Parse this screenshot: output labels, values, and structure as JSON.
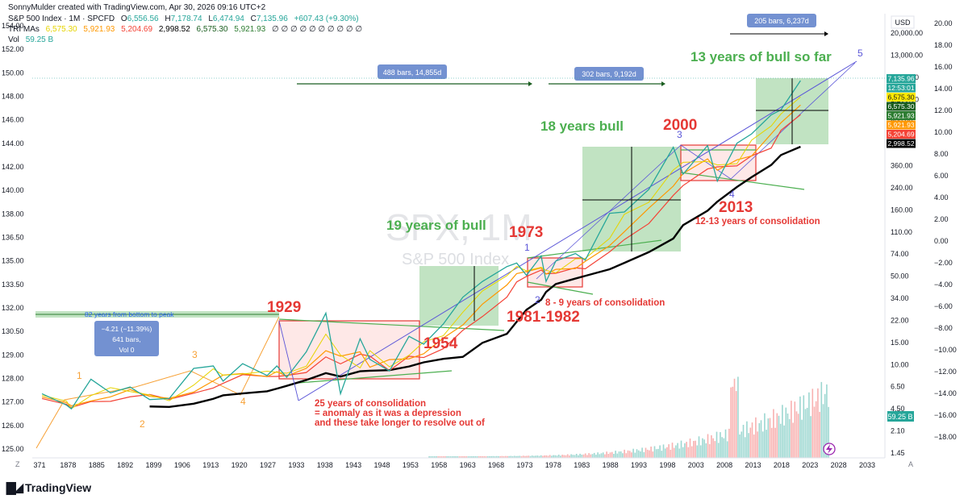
{
  "header": {
    "created_by": "SonnyMulder created with TradingView.com, Apr 30, 2026 09:16 UTC+2",
    "symbol": "S&P 500 Index · 1M · SPCFD",
    "ohlc": {
      "o_label": "O",
      "o": "6,556.56",
      "h_label": "H",
      "h": "7,178.74",
      "l_label": "L",
      "l": "6,474.94",
      "c_label": "C",
      "c": "7,135.96",
      "change": "+607.43 (+9.30%)"
    },
    "tri_label": "TRI MAs",
    "tri_values": [
      "6,575.30",
      "5,921.93",
      "5,204.69",
      "2,998.52",
      "6,575.30",
      "5,921.93",
      "∅ ∅ ∅ ∅ ∅ ∅ ∅ ∅ ∅ ∅"
    ],
    "vol_label": "Vol",
    "vol_value": "59.25 B"
  },
  "watermark": {
    "symbol": "SPX, 1M",
    "name": "S&P 500 Index"
  },
  "footer": {
    "brand": "TradingView"
  },
  "colors": {
    "up": "#26a69a",
    "down": "#ef5350",
    "bull_zone": "#4caf50",
    "consolidation_zone": "#f44336",
    "annotation_green": "#4caf50",
    "annotation_red": "#e53935",
    "wave_orange": "#f7a136",
    "wave_blue": "#5b56d8",
    "ma_black": "#000000",
    "ma_green": "#2e7d32",
    "ma_orange": "#ff9800",
    "ma_red": "#f44336",
    "ma_yellow": "#e6d400"
  },
  "annotations": {
    "a1929": "1929",
    "a1954": "1954",
    "a1973": "1973",
    "a1981": "1981-1982",
    "a2000": "2000",
    "a2013": "2013",
    "bull19": "19 years of bull",
    "bull18": "18 years bull",
    "bull13": "13 years of bull so far",
    "cons25_1": "25 years of consolidation",
    "cons25_2": "= anomaly as it was a depression",
    "cons25_3": "and these take longer to resolve out of",
    "cons8": "8 - 9 years of consolidation",
    "cons12": "12-13 years of consolidation",
    "years82": "82 years from bottom to peak"
  },
  "measure_boxes": {
    "m1": "488 bars, 14,855d",
    "m2": "302 bars, 9,192d",
    "m3": "205 bars, 6,237d",
    "m4_line1": "−4.21 (−11.39%)",
    "m4_line2": "641 bars,",
    "m4_line3": "Vol 0"
  },
  "waves": {
    "orange": [
      "1",
      "2",
      "3",
      "4"
    ],
    "blue": [
      "1",
      "2",
      "3",
      "4",
      "5"
    ]
  },
  "chart_data": {
    "type": "line",
    "title": "S&P 500 Index, 1M",
    "x_ticks": [
      "371",
      "1878",
      "1885",
      "1892",
      "1899",
      "1906",
      "1913",
      "1920",
      "1927",
      "1933",
      "1938",
      "1943",
      "1948",
      "1953",
      "1958",
      "1963",
      "1968",
      "1973",
      "1978",
      "1983",
      "1988",
      "1993",
      "1998",
      "2003",
      "2008",
      "2013",
      "2018",
      "2023",
      "2028",
      "2033"
    ],
    "left_axis_ticks": [
      "154.00",
      "152.00",
      "150.00",
      "148.00",
      "146.00",
      "144.00",
      "142.00",
      "140.00",
      "138.00",
      "136.50",
      "135.00",
      "133.50",
      "132.00",
      "130.50",
      "129.00",
      "128.00",
      "127.00",
      "126.00",
      "125.00"
    ],
    "right_price_ticks": [
      "20,000.00",
      "13,000.00",
      "9,000.00",
      "1,200.00",
      "800.00",
      "520.00",
      "360.00",
      "240.00",
      "160.00",
      "110.00",
      "74.00",
      "50.00",
      "34.00",
      "22.00",
      "15.00",
      "10.00",
      "6.50",
      "4.50",
      "2.10",
      "1.45"
    ],
    "right_pct_ticks": [
      "20.00",
      "18.00",
      "16.00",
      "14.00",
      "12.00",
      "10.00",
      "8.00",
      "6.00",
      "4.00",
      "2.00",
      "0.00",
      "−2.00",
      "−4.00",
      "−6.00",
      "−8.00",
      "−10.00",
      "−12.00",
      "−14.00",
      "−16.00",
      "−18.00"
    ],
    "currency": "USD",
    "log_scale": true,
    "price_tags": [
      {
        "value": "7,135.96",
        "color": "#26a69a"
      },
      {
        "value": "12:53:01",
        "color": "#26a69a"
      },
      {
        "value": "6,575.30",
        "color": "#ffe900"
      },
      {
        "value": "6,575.30",
        "color": "#1b5e20"
      },
      {
        "value": "5,921.93",
        "color": "#2e7d32"
      },
      {
        "value": "5,921.93",
        "color": "#ff9800"
      },
      {
        "value": "5,204.69",
        "color": "#f44336"
      },
      {
        "value": "2,998.52",
        "color": "#000000"
      }
    ],
    "volume_tag": "59.25 B",
    "price_series": {
      "name": "SPX",
      "x": [
        1871,
        1876,
        1877,
        1881,
        1885,
        1889,
        1893,
        1897,
        1902,
        1906,
        1908,
        1912,
        1917,
        1919,
        1921,
        1925,
        1929,
        1932,
        1936,
        1938,
        1942,
        1946,
        1949,
        1953,
        1957,
        1961,
        1966,
        1968,
        1970,
        1973,
        1974,
        1976,
        1980,
        1982,
        1987,
        1990,
        1995,
        2000,
        2002,
        2007,
        2009,
        2013,
        2016,
        2020,
        2022,
        2026
      ],
      "y": [
        4.7,
        3.6,
        3.3,
        6.6,
        4.8,
        5.5,
        4.1,
        4.2,
        8.5,
        9.0,
        6.3,
        9.5,
        7.2,
        9.0,
        6.9,
        12.5,
        31.0,
        4.7,
        17.0,
        10.5,
        8.0,
        18.0,
        15.0,
        24.0,
        45.0,
        65.0,
        92.0,
        100.0,
        75.0,
        118.0,
        65.0,
        105.0,
        125.0,
        107.0,
        320.0,
        330.0,
        560.0,
        1500.0,
        800.0,
        1560.0,
        680.0,
        1650.0,
        2050.0,
        3200.0,
        3600.0,
        7135.96
      ]
    }
  }
}
